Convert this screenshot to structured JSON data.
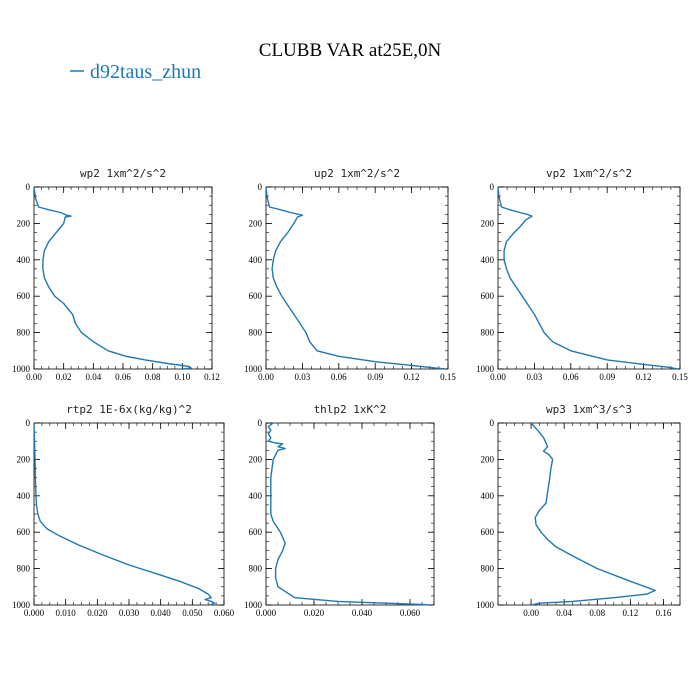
{
  "figure": {
    "title": "CLUBB VAR at25E,0N",
    "legend": {
      "label": "d92taus_zhun",
      "color": "#1f77b4",
      "placement": "top-left"
    }
  },
  "chart_data": [
    {
      "type": "line",
      "title": "wp2   1xm^2/s^2",
      "xlim": [
        0,
        0.12
      ],
      "ylim": [
        1000,
        0
      ],
      "xticks": [
        0,
        0.02,
        0.04,
        0.06,
        0.08,
        0.1,
        0.12
      ],
      "xtick_labels": [
        "0.00",
        "0.02",
        "0.04",
        "0.06",
        "0.08",
        "0.10",
        "0.12"
      ],
      "yticks": [
        0,
        200,
        400,
        600,
        800,
        1000
      ],
      "ytick_labels": [
        "0",
        "200",
        "400",
        "600",
        "800",
        "1000"
      ],
      "series": [
        {
          "color": "#1f77b4",
          "x": [
            0.0,
            0.001,
            0.003,
            0.01,
            0.018,
            0.022,
            0.025,
            0.021,
            0.02,
            0.018,
            0.014,
            0.01,
            0.007,
            0.006,
            0.006,
            0.007,
            0.01,
            0.014,
            0.02,
            0.023,
            0.026,
            0.028,
            0.032,
            0.04,
            0.05,
            0.062,
            0.075,
            0.09,
            0.104,
            0.106,
            0.1
          ],
          "y": [
            0,
            60,
            110,
            125,
            140,
            155,
            160,
            165,
            200,
            220,
            260,
            300,
            350,
            400,
            450,
            500,
            550,
            600,
            640,
            670,
            700,
            750,
            800,
            850,
            900,
            930,
            950,
            970,
            985,
            995,
            1000
          ]
        }
      ]
    },
    {
      "type": "line",
      "title": "up2   1xm^2/s^2",
      "xlim": [
        0,
        0.15
      ],
      "ylim": [
        1000,
        0
      ],
      "xticks": [
        0,
        0.03,
        0.06,
        0.09,
        0.12,
        0.15
      ],
      "xtick_labels": [
        "0.00",
        "0.03",
        "0.06",
        "0.09",
        "0.12",
        "0.15"
      ],
      "yticks": [
        0,
        200,
        400,
        600,
        800,
        1000
      ],
      "ytick_labels": [
        "0",
        "200",
        "400",
        "600",
        "800",
        "1000"
      ],
      "series": [
        {
          "color": "#1f77b4",
          "x": [
            0.0,
            0.001,
            0.003,
            0.012,
            0.02,
            0.03,
            0.026,
            0.023,
            0.018,
            0.012,
            0.008,
            0.006,
            0.005,
            0.006,
            0.009,
            0.013,
            0.018,
            0.023,
            0.028,
            0.033,
            0.036,
            0.042,
            0.06,
            0.09,
            0.12,
            0.14,
            0.148
          ],
          "y": [
            0,
            60,
            110,
            125,
            140,
            155,
            165,
            200,
            250,
            300,
            350,
            400,
            450,
            500,
            550,
            600,
            650,
            700,
            750,
            800,
            850,
            900,
            930,
            960,
            980,
            995,
            1000
          ]
        }
      ]
    },
    {
      "type": "line",
      "title": "vp2   1xm^2/s^2",
      "xlim": [
        0,
        0.15
      ],
      "ylim": [
        1000,
        0
      ],
      "xticks": [
        0,
        0.03,
        0.06,
        0.09,
        0.12,
        0.15
      ],
      "xtick_labels": [
        "0.00",
        "0.03",
        "0.06",
        "0.09",
        "0.12",
        "0.15"
      ],
      "yticks": [
        0,
        200,
        400,
        600,
        800,
        1000
      ],
      "ytick_labels": [
        "0",
        "200",
        "400",
        "600",
        "800",
        "1000"
      ],
      "series": [
        {
          "color": "#1f77b4",
          "x": [
            0.0,
            0.001,
            0.003,
            0.01,
            0.018,
            0.024,
            0.028,
            0.023,
            0.018,
            0.012,
            0.007,
            0.005,
            0.005,
            0.007,
            0.01,
            0.015,
            0.02,
            0.025,
            0.03,
            0.034,
            0.038,
            0.045,
            0.06,
            0.09,
            0.12,
            0.14,
            0.148
          ],
          "y": [
            0,
            60,
            110,
            125,
            140,
            150,
            160,
            180,
            220,
            260,
            300,
            350,
            400,
            450,
            500,
            550,
            600,
            650,
            700,
            750,
            800,
            850,
            900,
            950,
            975,
            990,
            1000
          ]
        }
      ]
    },
    {
      "type": "line",
      "title": "rtp2   1E-6x(kg/kg)^2",
      "xlim": [
        0,
        0.06
      ],
      "ylim": [
        1000,
        0
      ],
      "xticks": [
        0,
        0.01,
        0.02,
        0.03,
        0.04,
        0.05,
        0.06
      ],
      "xtick_labels": [
        "0.000",
        "0.010",
        "0.020",
        "0.030",
        "0.040",
        "0.050",
        "0.060"
      ],
      "yticks": [
        0,
        200,
        400,
        600,
        800,
        1000
      ],
      "ytick_labels": [
        "0",
        "200",
        "400",
        "600",
        "800",
        "1000"
      ],
      "series": [
        {
          "color": "#1f77b4",
          "x": [
            0.0,
            0.0003,
            0.0005,
            0.0008,
            0.0012,
            0.002,
            0.004,
            0.008,
            0.014,
            0.021,
            0.03,
            0.039,
            0.046,
            0.052,
            0.055,
            0.056,
            0.054,
            0.056,
            0.057,
            0.0555
          ],
          "y": [
            0,
            200,
            350,
            450,
            500,
            540,
            580,
            620,
            670,
            720,
            780,
            830,
            870,
            910,
            940,
            960,
            970,
            980,
            990,
            1000
          ]
        }
      ]
    },
    {
      "type": "line",
      "title": "thlp2   1xK^2",
      "xlim": [
        0,
        0.07
      ],
      "ylim": [
        1000,
        0
      ],
      "xticks": [
        0,
        0.02,
        0.04,
        0.06
      ],
      "xtick_labels": [
        "0.000",
        "0.020",
        "0.040",
        "0.060"
      ],
      "yticks": [
        0,
        200,
        400,
        600,
        800,
        1000
      ],
      "ytick_labels": [
        "0",
        "200",
        "400",
        "600",
        "800",
        "1000"
      ],
      "series": [
        {
          "color": "#1f77b4",
          "x": [
            0.003,
            0.001,
            0.002,
            0.001,
            0.002,
            0.001,
            0.004,
            0.007,
            0.005,
            0.008,
            0.005,
            0.003,
            0.002,
            0.002,
            0.002,
            0.003,
            0.006,
            0.008,
            0.007,
            0.005,
            0.004,
            0.004,
            0.005,
            0.012,
            0.03,
            0.05,
            0.065,
            0.068
          ],
          "y": [
            0,
            20,
            40,
            60,
            80,
            100,
            110,
            115,
            130,
            140,
            150,
            200,
            300,
            400,
            500,
            540,
            600,
            660,
            700,
            750,
            800,
            850,
            900,
            960,
            980,
            990,
            997,
            1000
          ]
        }
      ]
    },
    {
      "type": "line",
      "title": "wp3   1xm^3/s^3",
      "xlim": [
        -0.04,
        0.18
      ],
      "ylim": [
        1000,
        0
      ],
      "xticks": [
        0,
        0.04,
        0.08,
        0.12,
        0.16
      ],
      "xtick_labels": [
        "0.00",
        "0.04",
        "0.08",
        "0.12",
        "0.16"
      ],
      "yticks": [
        0,
        200,
        400,
        600,
        800,
        1000
      ],
      "ytick_labels": [
        "0",
        "200",
        "400",
        "600",
        "800",
        "1000"
      ],
      "series": [
        {
          "color": "#1f77b4",
          "x": [
            0.0,
            0.008,
            0.015,
            0.02,
            0.015,
            0.022,
            0.026,
            0.024,
            0.022,
            0.02,
            0.018,
            0.01,
            0.005,
            0.006,
            0.012,
            0.02,
            0.03,
            0.05,
            0.08,
            0.12,
            0.15,
            0.14,
            0.1,
            0.05,
            0.01,
            0.0
          ],
          "y": [
            0,
            40,
            80,
            130,
            155,
            175,
            200,
            250,
            320,
            380,
            440,
            480,
            520,
            560,
            600,
            640,
            680,
            730,
            800,
            870,
            920,
            940,
            960,
            980,
            990,
            1000
          ]
        }
      ]
    }
  ]
}
